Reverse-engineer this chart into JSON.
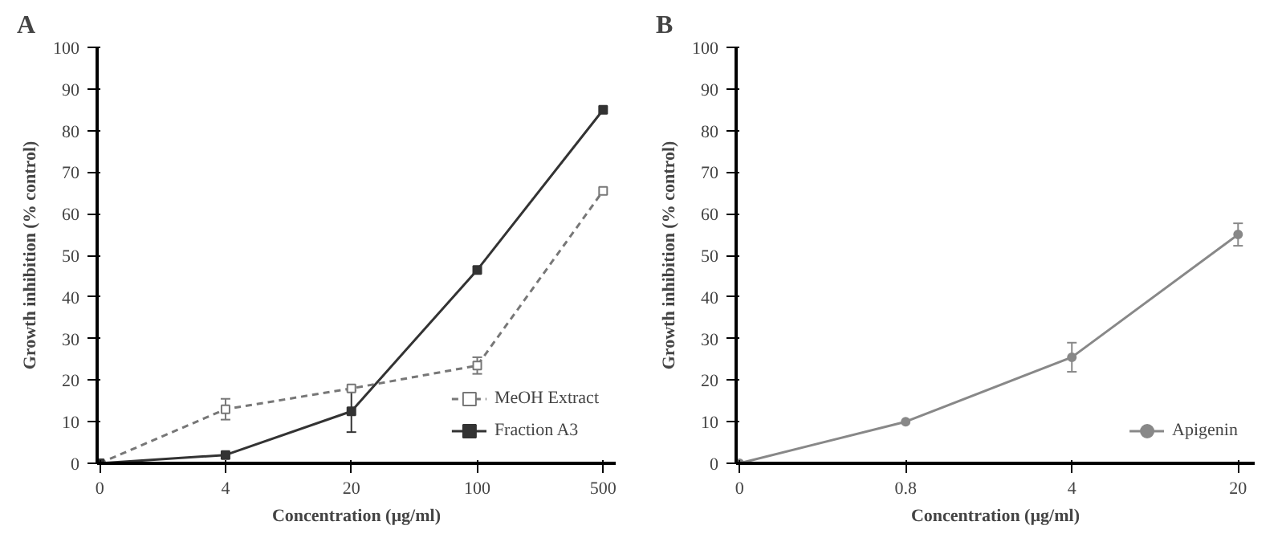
{
  "chart_data": [
    {
      "type": "line",
      "title": "A",
      "xlabel": "Concentration (µg/ml)",
      "ylabel": "Growth inhibition (% control)",
      "categories": [
        "0",
        "4",
        "20",
        "100",
        "500"
      ],
      "ylim": [
        0,
        100
      ],
      "yticks": [
        0,
        10,
        20,
        30,
        40,
        50,
        60,
        70,
        80,
        90,
        100
      ],
      "grid": false,
      "legend": "bottom right",
      "series": [
        {
          "name": "MeOH Extract",
          "color": "#777777",
          "marker": "square",
          "line_style": "dashed",
          "values": [
            0,
            13,
            18,
            23.5,
            65.5
          ],
          "errors": [
            null,
            2.5,
            null,
            2,
            null
          ]
        },
        {
          "name": "Fraction A3",
          "color": "#333333",
          "marker": "square",
          "line_style": "solid",
          "values": [
            0,
            2,
            12.5,
            46.5,
            85
          ],
          "errors": [
            null,
            null,
            5,
            null,
            null
          ]
        }
      ]
    },
    {
      "type": "line",
      "title": "B",
      "xlabel": "Concentration (µg/ml)",
      "ylabel": "Growth inhibition (% control)",
      "categories": [
        "0",
        "0.8",
        "4",
        "20"
      ],
      "ylim": [
        0,
        100
      ],
      "yticks": [
        0,
        10,
        20,
        30,
        40,
        50,
        60,
        70,
        80,
        90,
        100
      ],
      "grid": false,
      "legend": "bottom right",
      "series": [
        {
          "name": "Apigenin",
          "color": "#888888",
          "marker": "circle",
          "line_style": "solid",
          "values": [
            0,
            10,
            25.5,
            55
          ],
          "errors": [
            null,
            null,
            3.5,
            2.7
          ]
        }
      ]
    }
  ]
}
